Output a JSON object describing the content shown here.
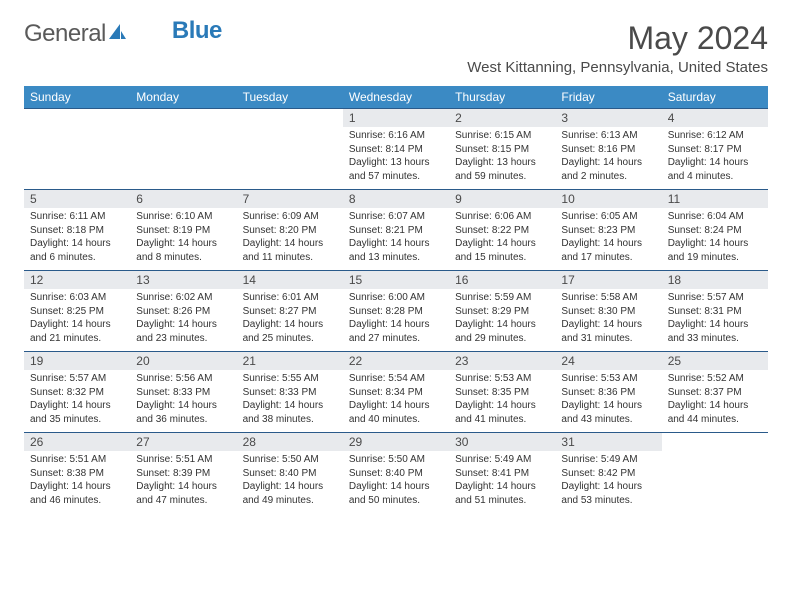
{
  "logo": {
    "text1": "General",
    "text2": "Blue"
  },
  "title": "May 2024",
  "location": "West Kittanning, Pennsylvania, United States",
  "colors": {
    "header_bg": "#3b8ac4",
    "header_text": "#ffffff",
    "daynum_bg": "#e8eaed",
    "border": "#2a5a8a",
    "logo_gray": "#5a5a5a",
    "logo_blue": "#2a7ab8"
  },
  "weekdays": [
    "Sunday",
    "Monday",
    "Tuesday",
    "Wednesday",
    "Thursday",
    "Friday",
    "Saturday"
  ],
  "weeks": [
    [
      null,
      null,
      null,
      {
        "n": "1",
        "sr": "6:16 AM",
        "ss": "8:14 PM",
        "dl": "13 hours and 57 minutes."
      },
      {
        "n": "2",
        "sr": "6:15 AM",
        "ss": "8:15 PM",
        "dl": "13 hours and 59 minutes."
      },
      {
        "n": "3",
        "sr": "6:13 AM",
        "ss": "8:16 PM",
        "dl": "14 hours and 2 minutes."
      },
      {
        "n": "4",
        "sr": "6:12 AM",
        "ss": "8:17 PM",
        "dl": "14 hours and 4 minutes."
      }
    ],
    [
      {
        "n": "5",
        "sr": "6:11 AM",
        "ss": "8:18 PM",
        "dl": "14 hours and 6 minutes."
      },
      {
        "n": "6",
        "sr": "6:10 AM",
        "ss": "8:19 PM",
        "dl": "14 hours and 8 minutes."
      },
      {
        "n": "7",
        "sr": "6:09 AM",
        "ss": "8:20 PM",
        "dl": "14 hours and 11 minutes."
      },
      {
        "n": "8",
        "sr": "6:07 AM",
        "ss": "8:21 PM",
        "dl": "14 hours and 13 minutes."
      },
      {
        "n": "9",
        "sr": "6:06 AM",
        "ss": "8:22 PM",
        "dl": "14 hours and 15 minutes."
      },
      {
        "n": "10",
        "sr": "6:05 AM",
        "ss": "8:23 PM",
        "dl": "14 hours and 17 minutes."
      },
      {
        "n": "11",
        "sr": "6:04 AM",
        "ss": "8:24 PM",
        "dl": "14 hours and 19 minutes."
      }
    ],
    [
      {
        "n": "12",
        "sr": "6:03 AM",
        "ss": "8:25 PM",
        "dl": "14 hours and 21 minutes."
      },
      {
        "n": "13",
        "sr": "6:02 AM",
        "ss": "8:26 PM",
        "dl": "14 hours and 23 minutes."
      },
      {
        "n": "14",
        "sr": "6:01 AM",
        "ss": "8:27 PM",
        "dl": "14 hours and 25 minutes."
      },
      {
        "n": "15",
        "sr": "6:00 AM",
        "ss": "8:28 PM",
        "dl": "14 hours and 27 minutes."
      },
      {
        "n": "16",
        "sr": "5:59 AM",
        "ss": "8:29 PM",
        "dl": "14 hours and 29 minutes."
      },
      {
        "n": "17",
        "sr": "5:58 AM",
        "ss": "8:30 PM",
        "dl": "14 hours and 31 minutes."
      },
      {
        "n": "18",
        "sr": "5:57 AM",
        "ss": "8:31 PM",
        "dl": "14 hours and 33 minutes."
      }
    ],
    [
      {
        "n": "19",
        "sr": "5:57 AM",
        "ss": "8:32 PM",
        "dl": "14 hours and 35 minutes."
      },
      {
        "n": "20",
        "sr": "5:56 AM",
        "ss": "8:33 PM",
        "dl": "14 hours and 36 minutes."
      },
      {
        "n": "21",
        "sr": "5:55 AM",
        "ss": "8:33 PM",
        "dl": "14 hours and 38 minutes."
      },
      {
        "n": "22",
        "sr": "5:54 AM",
        "ss": "8:34 PM",
        "dl": "14 hours and 40 minutes."
      },
      {
        "n": "23",
        "sr": "5:53 AM",
        "ss": "8:35 PM",
        "dl": "14 hours and 41 minutes."
      },
      {
        "n": "24",
        "sr": "5:53 AM",
        "ss": "8:36 PM",
        "dl": "14 hours and 43 minutes."
      },
      {
        "n": "25",
        "sr": "5:52 AM",
        "ss": "8:37 PM",
        "dl": "14 hours and 44 minutes."
      }
    ],
    [
      {
        "n": "26",
        "sr": "5:51 AM",
        "ss": "8:38 PM",
        "dl": "14 hours and 46 minutes."
      },
      {
        "n": "27",
        "sr": "5:51 AM",
        "ss": "8:39 PM",
        "dl": "14 hours and 47 minutes."
      },
      {
        "n": "28",
        "sr": "5:50 AM",
        "ss": "8:40 PM",
        "dl": "14 hours and 49 minutes."
      },
      {
        "n": "29",
        "sr": "5:50 AM",
        "ss": "8:40 PM",
        "dl": "14 hours and 50 minutes."
      },
      {
        "n": "30",
        "sr": "5:49 AM",
        "ss": "8:41 PM",
        "dl": "14 hours and 51 minutes."
      },
      {
        "n": "31",
        "sr": "5:49 AM",
        "ss": "8:42 PM",
        "dl": "14 hours and 53 minutes."
      },
      null
    ]
  ]
}
